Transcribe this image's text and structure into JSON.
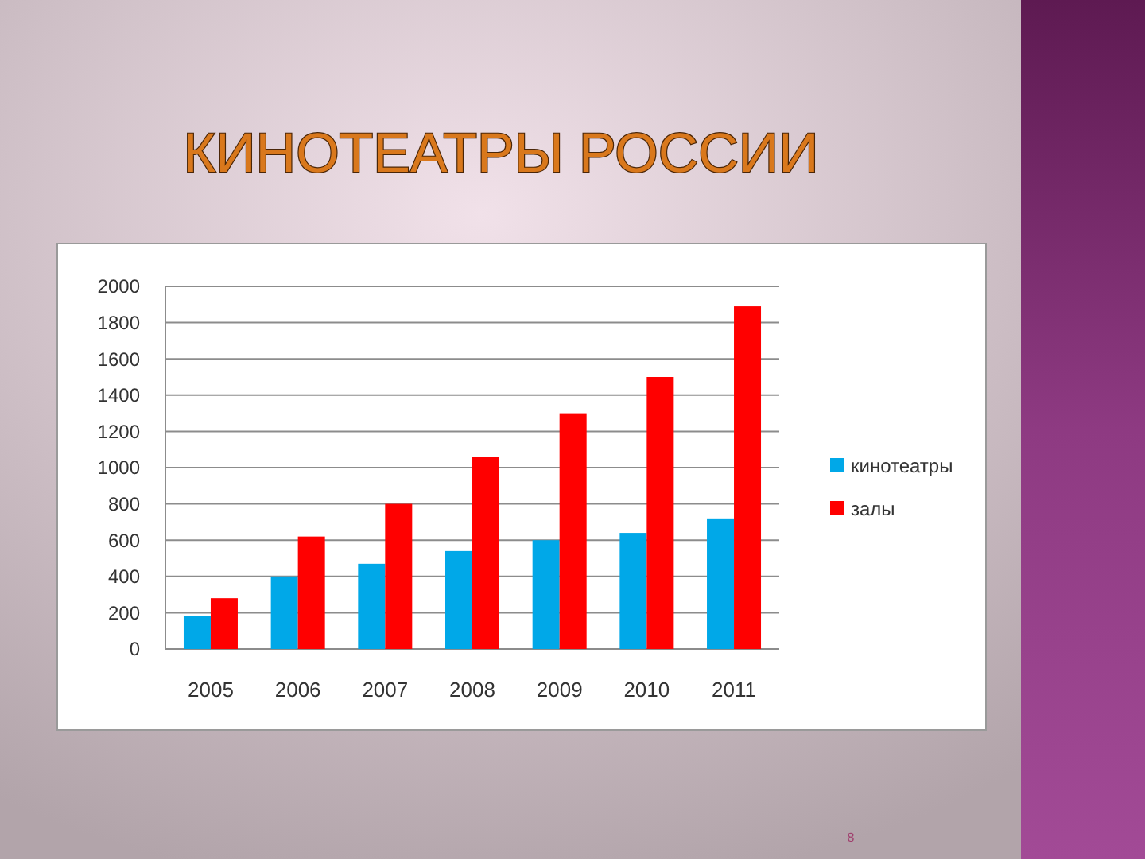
{
  "chart_data": {
    "type": "bar",
    "title": "КИНОТЕАТРЫ РОССИИ",
    "categories": [
      "2005",
      "2006",
      "2007",
      "2008",
      "2009",
      "2010",
      "2011"
    ],
    "series": [
      {
        "name": "кинотеатры",
        "color": "#00a8e8",
        "values": [
          180,
          400,
          470,
          540,
          600,
          640,
          720
        ]
      },
      {
        "name": "залы",
        "color": "#ff0000",
        "values": [
          280,
          620,
          800,
          1060,
          1300,
          1500,
          1890
        ]
      }
    ],
    "ylim": [
      0,
      2000
    ],
    "yticks": [
      0,
      200,
      400,
      600,
      800,
      1000,
      1200,
      1400,
      1600,
      1800,
      2000
    ],
    "grid": "y",
    "legend": "right",
    "annotations": [
      "8"
    ]
  }
}
